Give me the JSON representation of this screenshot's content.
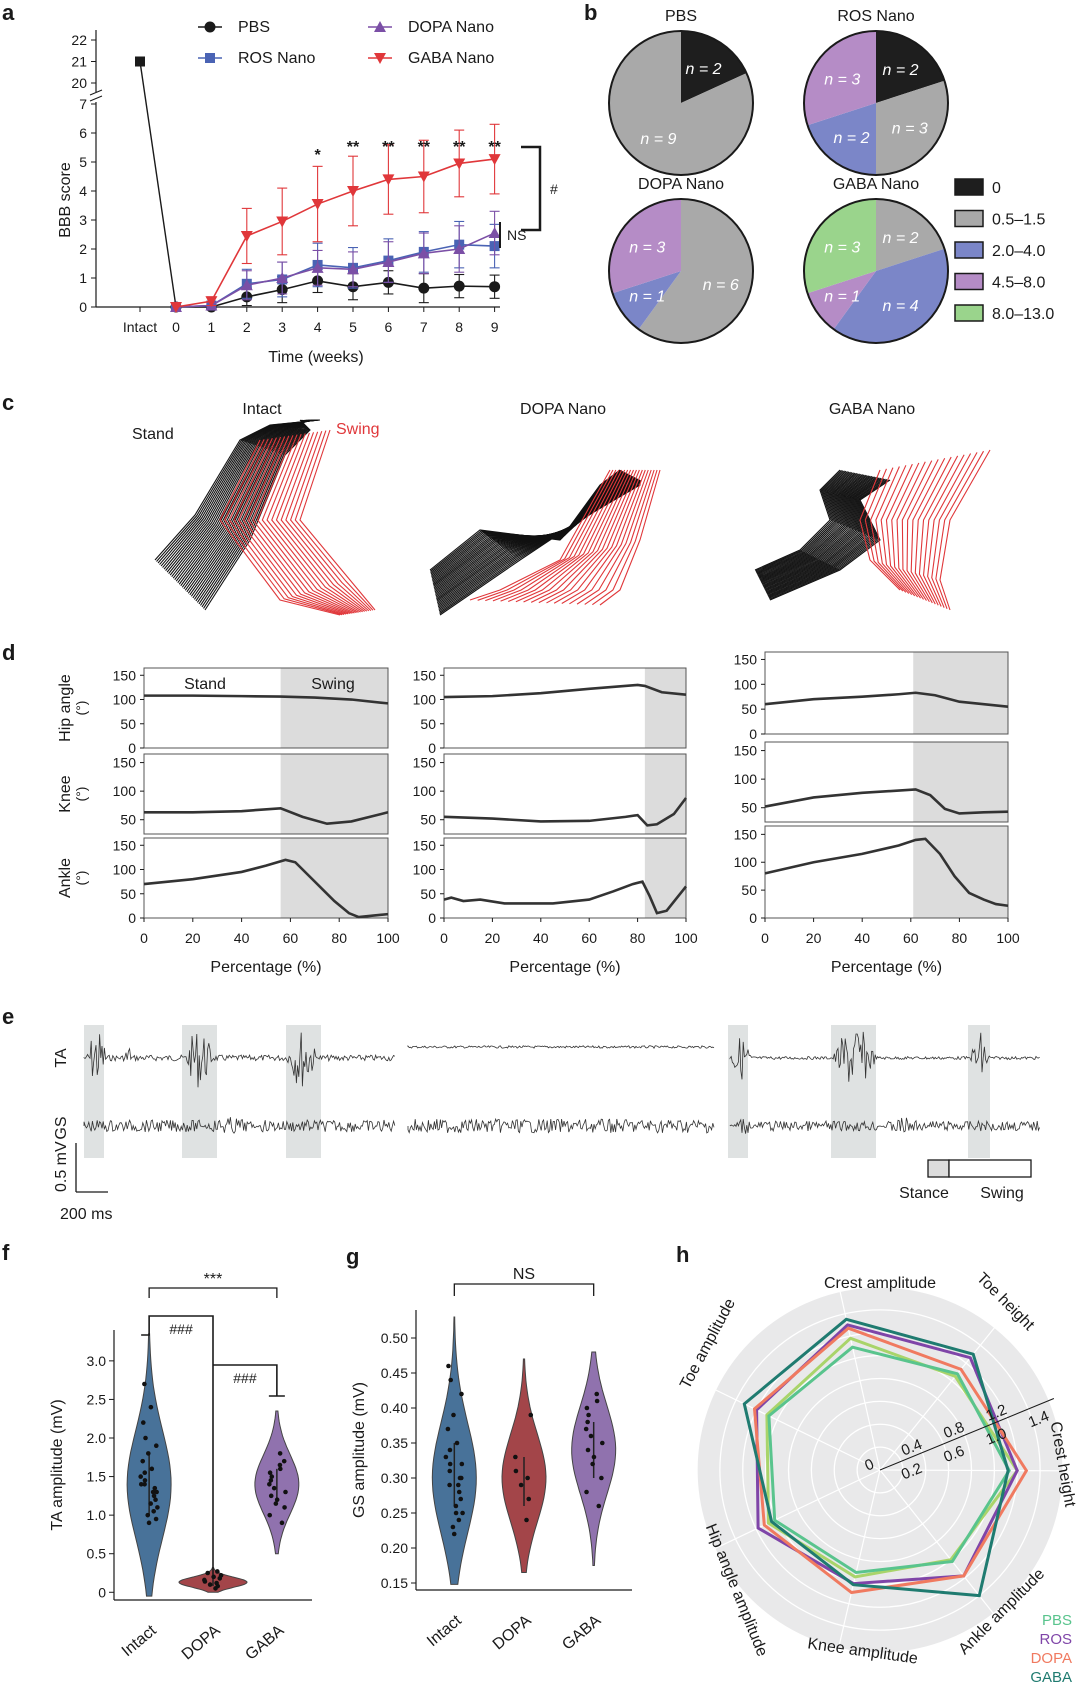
{
  "panels": {
    "a": "a",
    "b": "b",
    "c": "c",
    "d": "d",
    "e": "e",
    "f": "f",
    "g": "g",
    "h": "h"
  },
  "chart_data": [
    {
      "id": "a",
      "type": "line",
      "ylabel": "BBB score",
      "xlabel": "Time (weeks)",
      "x_ticks": [
        "Intact",
        "0",
        "1",
        "2",
        "3",
        "4",
        "5",
        "6",
        "7",
        "8",
        "9"
      ],
      "y_ticks_lower": [
        "0",
        "1",
        "2",
        "3",
        "4",
        "5",
        "6",
        "7"
      ],
      "y_ticks_upper": [
        "20",
        "21",
        "22"
      ],
      "intact_value": 21,
      "x": [
        0,
        1,
        2,
        3,
        4,
        5,
        6,
        7,
        8,
        9
      ],
      "series": [
        {
          "name": "PBS",
          "color": "#1a1a1a",
          "marker": "circle",
          "values": [
            0,
            0,
            0.35,
            0.6,
            0.9,
            0.7,
            0.85,
            0.65,
            0.72,
            0.7
          ],
          "err": [
            0,
            0,
            0.3,
            0.45,
            0.4,
            0.45,
            0.4,
            0.5,
            0.4,
            0.4
          ]
        },
        {
          "name": "ROS Nano",
          "color": "#4a63b4",
          "marker": "square",
          "values": [
            0,
            0.05,
            0.8,
            0.95,
            1.45,
            1.35,
            1.6,
            1.9,
            2.15,
            2.1
          ],
          "err": [
            0,
            0.1,
            0.5,
            0.6,
            0.75,
            0.7,
            0.75,
            0.7,
            0.8,
            0.75
          ]
        },
        {
          "name": "DOPA Nano",
          "color": "#7b4fa6",
          "marker": "triangle",
          "values": [
            0,
            0.05,
            0.75,
            1.0,
            1.35,
            1.3,
            1.55,
            1.85,
            2.0,
            2.55
          ],
          "err": [
            0,
            0.1,
            0.5,
            0.55,
            0.6,
            0.6,
            0.7,
            0.7,
            0.8,
            0.75
          ]
        },
        {
          "name": "GABA Nano",
          "color": "#e0373a",
          "marker": "triangle-down",
          "values": [
            0,
            0.2,
            2.45,
            2.95,
            3.55,
            4.0,
            4.4,
            4.5,
            4.95,
            5.1
          ],
          "err": [
            0,
            0.15,
            0.95,
            1.15,
            1.3,
            1.2,
            1.2,
            1.25,
            1.15,
            1.2
          ]
        }
      ],
      "significance": [
        {
          "x": 4,
          "label": "*"
        },
        {
          "x": 5,
          "label": "**"
        },
        {
          "x": 6,
          "label": "**"
        },
        {
          "x": 7,
          "label": "**"
        },
        {
          "x": 8,
          "label": "**"
        },
        {
          "x": 9,
          "label": "**"
        }
      ],
      "bracket_labels": [
        "#",
        "NS"
      ]
    },
    {
      "id": "b",
      "type": "pie",
      "pies": [
        {
          "title": "PBS",
          "slices": [
            {
              "cat": "0",
              "n": 2,
              "label": "n = 2"
            },
            {
              "cat": "0.5–1.5",
              "n": 9,
              "label": "n = 9"
            }
          ]
        },
        {
          "title": "ROS Nano",
          "slices": [
            {
              "cat": "0",
              "n": 2,
              "label": "n = 2"
            },
            {
              "cat": "0.5–1.5",
              "n": 3,
              "label": "n = 3"
            },
            {
              "cat": "2.0–4.0",
              "n": 2,
              "label": "n = 2"
            },
            {
              "cat": "4.5–8.0",
              "n": 3,
              "label": "n = 3"
            }
          ]
        },
        {
          "title": "DOPA Nano",
          "slices": [
            {
              "cat": "0.5–1.5",
              "n": 6,
              "label": "n = 6"
            },
            {
              "cat": "2.0–4.0",
              "n": 1,
              "label": "n = 1"
            },
            {
              "cat": "4.5–8.0",
              "n": 3,
              "label": "n = 3"
            }
          ]
        },
        {
          "title": "GABA Nano",
          "slices": [
            {
              "cat": "0.5–1.5",
              "n": 2,
              "label": "n = 2"
            },
            {
              "cat": "2.0–4.0",
              "n": 4,
              "label": "n = 4"
            },
            {
              "cat": "4.5–8.0",
              "n": 1,
              "label": "n = 1"
            },
            {
              "cat": "8.0–13.0",
              "n": 3,
              "label": "n = 3"
            }
          ]
        }
      ],
      "legend": [
        {
          "label": "0",
          "color": "#1e1e1e"
        },
        {
          "label": "0.5–1.5",
          "color": "#a9a9a9"
        },
        {
          "label": "2.0–4.0",
          "color": "#7b86c8"
        },
        {
          "label": "4.5–8.0",
          "color": "#b58cc6"
        },
        {
          "label": "8.0–13.0",
          "color": "#9ad48c"
        }
      ]
    },
    {
      "id": "c",
      "type": "diagram",
      "titles": [
        "Intact",
        "DOPA Nano",
        "GABA Nano"
      ],
      "labels": {
        "stand": "Stand",
        "swing": "Swing"
      }
    },
    {
      "id": "d",
      "type": "line",
      "xlabel": "Percentage (%)",
      "x_ticks": [
        "0",
        "20",
        "40",
        "60",
        "80",
        "100"
      ],
      "rows": [
        {
          "ylabel": [
            "Hip angle",
            "(°)"
          ],
          "ticks": [
            "0",
            "50",
            "100",
            "150"
          ]
        },
        {
          "ylabel": [
            "Knee",
            "(°)"
          ],
          "ticks": [
            "50",
            "100",
            "150"
          ]
        },
        {
          "ylabel": [
            "Ankle",
            "(°)"
          ],
          "ticks": [
            "0",
            "50",
            "100",
            "150"
          ]
        }
      ],
      "labels": {
        "stand": "Stand",
        "swing": "Swing"
      },
      "columns": [
        {
          "name": "Intact",
          "swing_start": 56,
          "hip": [
            [
              0,
              108
            ],
            [
              20,
              108
            ],
            [
              40,
              107
            ],
            [
              56,
              106
            ],
            [
              70,
              104
            ],
            [
              85,
              100
            ],
            [
              100,
              92
            ]
          ],
          "knee": [
            [
              0,
              63
            ],
            [
              20,
              63
            ],
            [
              40,
              65
            ],
            [
              56,
              70
            ],
            [
              65,
              55
            ],
            [
              75,
              43
            ],
            [
              85,
              47
            ],
            [
              100,
              63
            ]
          ],
          "ankle": [
            [
              0,
              70
            ],
            [
              20,
              80
            ],
            [
              40,
              95
            ],
            [
              50,
              108
            ],
            [
              58,
              120
            ],
            [
              62,
              115
            ],
            [
              70,
              75
            ],
            [
              78,
              35
            ],
            [
              84,
              10
            ],
            [
              88,
              2
            ],
            [
              94,
              5
            ],
            [
              100,
              8
            ]
          ]
        },
        {
          "name": "DOPA Nano",
          "swing_start": 83,
          "hip": [
            [
              0,
              105
            ],
            [
              20,
              107
            ],
            [
              40,
              113
            ],
            [
              60,
              122
            ],
            [
              80,
              130
            ],
            [
              83,
              128
            ],
            [
              90,
              115
            ],
            [
              100,
              110
            ]
          ],
          "knee": [
            [
              0,
              55
            ],
            [
              20,
              52
            ],
            [
              40,
              47
            ],
            [
              60,
              48
            ],
            [
              75,
              55
            ],
            [
              80,
              58
            ],
            [
              84,
              40
            ],
            [
              88,
              42
            ],
            [
              95,
              60
            ],
            [
              100,
              88
            ]
          ],
          "ankle": [
            [
              0,
              38
            ],
            [
              3,
              42
            ],
            [
              8,
              35
            ],
            [
              15,
              38
            ],
            [
              25,
              30
            ],
            [
              45,
              30
            ],
            [
              60,
              38
            ],
            [
              70,
              55
            ],
            [
              78,
              70
            ],
            [
              82,
              75
            ],
            [
              85,
              45
            ],
            [
              88,
              10
            ],
            [
              92,
              15
            ],
            [
              96,
              40
            ],
            [
              100,
              65
            ]
          ]
        },
        {
          "name": "GABA Nano",
          "swing_start": 61,
          "hip": [
            [
              0,
              60
            ],
            [
              20,
              70
            ],
            [
              40,
              75
            ],
            [
              55,
              80
            ],
            [
              62,
              83
            ],
            [
              70,
              78
            ],
            [
              80,
              65
            ],
            [
              90,
              60
            ],
            [
              100,
              55
            ]
          ],
          "knee": [
            [
              0,
              52
            ],
            [
              20,
              68
            ],
            [
              40,
              76
            ],
            [
              55,
              80
            ],
            [
              62,
              82
            ],
            [
              68,
              72
            ],
            [
              74,
              48
            ],
            [
              80,
              40
            ],
            [
              90,
              42
            ],
            [
              100,
              43
            ]
          ],
          "ankle": [
            [
              0,
              80
            ],
            [
              20,
              100
            ],
            [
              40,
              115
            ],
            [
              55,
              130
            ],
            [
              62,
              140
            ],
            [
              66,
              142
            ],
            [
              72,
              115
            ],
            [
              78,
              75
            ],
            [
              84,
              45
            ],
            [
              90,
              33
            ],
            [
              95,
              25
            ],
            [
              100,
              22
            ]
          ]
        }
      ]
    },
    {
      "id": "e",
      "type": "diagram",
      "rows": [
        "TA",
        "GS"
      ],
      "scale": {
        "v": "0.5 mV",
        "t": "200 ms"
      },
      "legend": {
        "stance": "Stance",
        "swing": "Swing"
      }
    },
    {
      "id": "f",
      "type": "violin",
      "ylabel": "TA  amplitude (mV)",
      "categories": [
        "Intact",
        "DOPA",
        "GABA"
      ],
      "y_ticks": [
        "0",
        "0.5",
        "1.0",
        "1.5",
        "2.0",
        "2.5",
        "3.0"
      ],
      "ylim": [
        -0.1,
        3.4
      ],
      "colors": [
        "#3e6a93",
        "#9e3b3f",
        "#8a6aaa"
      ],
      "distributions": [
        {
          "min": -0.05,
          "max": 3.35,
          "median": 1.4,
          "q1": 1.0,
          "q3": 1.8,
          "points": [
            0.9,
            1.0,
            1.05,
            1.1,
            1.15,
            1.2,
            1.25,
            1.3,
            1.35,
            1.4,
            1.45,
            1.5,
            1.55,
            1.6,
            1.7,
            1.8,
            1.9,
            2.0,
            2.2,
            2.4,
            2.7,
            0.95,
            1.3,
            1.4
          ]
        },
        {
          "min": 0.0,
          "max": 0.32,
          "median": 0.13,
          "q1": 0.08,
          "q3": 0.2,
          "points": [
            0.05,
            0.08,
            0.1,
            0.12,
            0.14,
            0.16,
            0.18,
            0.2,
            0.22,
            0.25,
            0.27
          ]
        },
        {
          "min": 0.5,
          "max": 2.35,
          "median": 1.4,
          "q1": 1.15,
          "q3": 1.6,
          "points": [
            0.9,
            1.0,
            1.1,
            1.15,
            1.2,
            1.25,
            1.3,
            1.35,
            1.4,
            1.45,
            1.5,
            1.55,
            1.6,
            1.65,
            1.7,
            1.8
          ]
        }
      ],
      "significance": [
        {
          "label": "***"
        },
        {
          "label": "###"
        },
        {
          "label": "###"
        }
      ]
    },
    {
      "id": "g",
      "type": "violin",
      "ylabel": "GS  amplitude (mV)",
      "categories": [
        "Intact",
        "DOPA",
        "GABA"
      ],
      "y_ticks": [
        "0.15",
        "0.20",
        "0.25",
        "0.30",
        "0.35",
        "0.40",
        "0.45",
        "0.50"
      ],
      "ylim": [
        0.14,
        0.54
      ],
      "colors": [
        "#3e6a93",
        "#9e3b3f",
        "#8a6aaa"
      ],
      "distributions": [
        {
          "min": 0.148,
          "max": 0.53,
          "median": 0.3,
          "q1": 0.26,
          "q3": 0.35,
          "points": [
            0.22,
            0.23,
            0.24,
            0.25,
            0.26,
            0.27,
            0.28,
            0.29,
            0.3,
            0.31,
            0.32,
            0.33,
            0.34,
            0.35,
            0.37,
            0.39,
            0.42,
            0.44,
            0.46,
            0.25,
            0.29,
            0.3,
            0.32
          ]
        },
        {
          "min": 0.165,
          "max": 0.47,
          "median": 0.3,
          "q1": 0.26,
          "q3": 0.33,
          "points": [
            0.24,
            0.27,
            0.29,
            0.3,
            0.31,
            0.33,
            0.39
          ]
        },
        {
          "min": 0.175,
          "max": 0.48,
          "median": 0.34,
          "q1": 0.3,
          "q3": 0.38,
          "points": [
            0.26,
            0.28,
            0.3,
            0.32,
            0.33,
            0.34,
            0.35,
            0.36,
            0.37,
            0.38,
            0.39,
            0.4,
            0.41,
            0.42
          ]
        }
      ],
      "significance": [
        {
          "label": "NS"
        }
      ]
    },
    {
      "id": "h",
      "type": "radar",
      "axes": [
        "Crest amplitude",
        "Toe height",
        "Crest height",
        "Ankle amplitude",
        "Knee amplitude",
        "Hip angle amplitude",
        "Toe amplitude"
      ],
      "r_ticks": [
        "0",
        "0.2",
        "0.4",
        "0.6",
        "0.8",
        "1.0",
        "1.2",
        "1.4"
      ],
      "rmax": 1.6,
      "series": [
        {
          "name": "PBS",
          "color": "#59c48d",
          "values": [
            1.1,
            1.08,
            1.13,
            1.02,
            0.92,
            1.02,
            1.08
          ]
        },
        {
          "name": "ROS",
          "color": "#7f45a8",
          "values": [
            1.3,
            1.26,
            1.2,
            1.18,
            1.02,
            1.18,
            1.2
          ]
        },
        {
          "name": "DOPA",
          "color": "#f07a60",
          "values": [
            1.27,
            1.13,
            1.28,
            1.18,
            1.1,
            1.12,
            1.22
          ]
        },
        {
          "name": "GABA",
          "color": "#1f7b70",
          "values": [
            1.35,
            1.3,
            1.12,
            1.4,
            1.03,
            1.05,
            1.32
          ]
        }
      ],
      "series_overlay": {
        "name": "light-green",
        "color": "#a9d46a",
        "values": [
          1.18,
          1.05,
          1.2,
          1.0,
          0.96,
          1.08,
          1.1
        ]
      }
    }
  ]
}
